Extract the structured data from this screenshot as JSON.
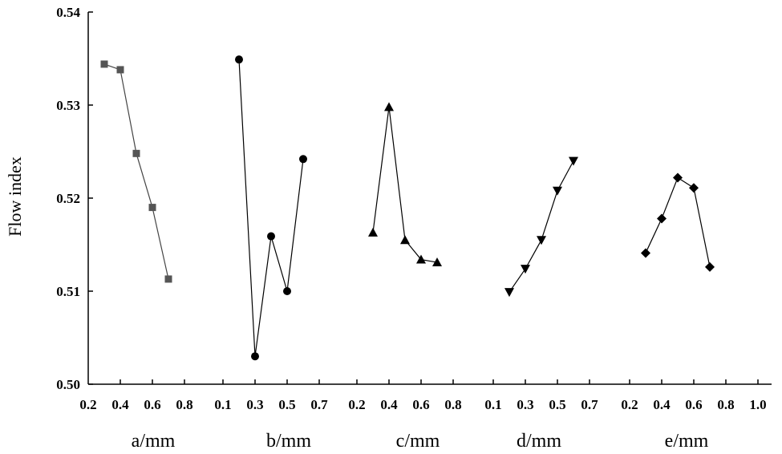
{
  "chart_data": {
    "type": "line",
    "ylabel": "Flow index",
    "ylim": [
      0.5,
      0.54
    ],
    "yticks": [
      "0.50",
      "0.51",
      "0.52",
      "0.53",
      "0.54"
    ],
    "grid": false,
    "panels": [
      {
        "xlabel": "a/mm",
        "marker": "square",
        "color": "#555555",
        "xticks": [
          "0.2",
          "0.4",
          "0.6",
          "0.8"
        ],
        "x": [
          0.3,
          0.4,
          0.5,
          0.6,
          0.7
        ],
        "y": [
          0.5344,
          0.5338,
          0.5248,
          0.519,
          0.5113
        ]
      },
      {
        "xlabel": "b/mm",
        "marker": "circle",
        "color": "#000000",
        "xticks": [
          "0.1",
          "0.3",
          "0.5",
          "0.7"
        ],
        "x": [
          0.2,
          0.3,
          0.4,
          0.5,
          0.6
        ],
        "y": [
          0.5349,
          0.503,
          0.5159,
          0.51,
          0.5242
        ]
      },
      {
        "xlabel": "c/mm",
        "marker": "triangle-up",
        "color": "#000000",
        "xticks": [
          "0.2",
          "0.4",
          "0.6",
          "0.8"
        ],
        "x": [
          0.3,
          0.4,
          0.5,
          0.6,
          0.7
        ],
        "y": [
          0.5163,
          0.5298,
          0.5155,
          0.5134,
          0.5131
        ]
      },
      {
        "xlabel": "d/mm",
        "marker": "triangle-down",
        "color": "#000000",
        "xticks": [
          "0.1",
          "0.3",
          "0.5",
          "0.7"
        ],
        "x": [
          0.2,
          0.3,
          0.4,
          0.5,
          0.6
        ],
        "y": [
          0.5099,
          0.5124,
          0.5155,
          0.5208,
          0.524
        ]
      },
      {
        "xlabel": "e/mm",
        "marker": "diamond",
        "color": "#000000",
        "xticks": [
          "0.2",
          "0.4",
          "0.6",
          "0.8",
          "1.0"
        ],
        "x": [
          0.3,
          0.4,
          0.5,
          0.6,
          0.7
        ],
        "y": [
          0.5141,
          0.5178,
          0.5222,
          0.5211,
          0.5126
        ]
      }
    ]
  }
}
